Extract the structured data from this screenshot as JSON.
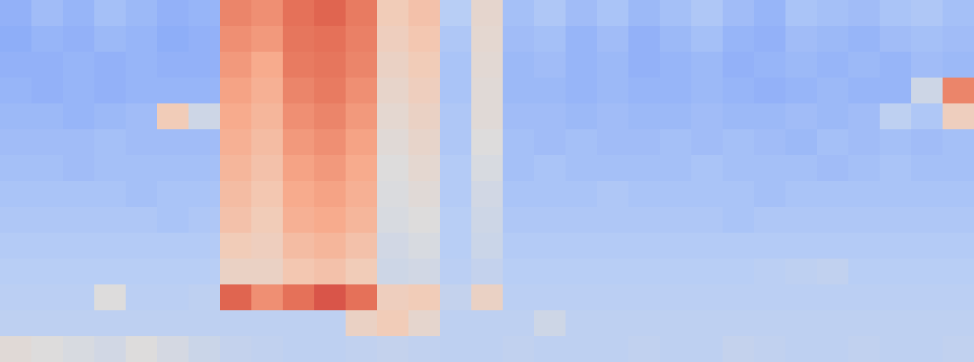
{
  "chart_data": {
    "type": "heatmap",
    "tick_labels": false,
    "color_range": [
      0,
      1
    ],
    "values": [
      [
        0.3,
        0.33,
        0.31,
        0.34,
        0.32,
        0.3,
        0.31,
        0.82,
        0.8,
        0.86,
        0.88,
        0.84,
        0.62,
        0.66,
        0.38,
        0.55,
        0.34,
        0.36,
        0.33,
        0.35,
        0.32,
        0.34,
        0.36,
        0.33,
        0.31,
        0.35,
        0.34,
        0.33,
        0.35,
        0.36,
        0.34
      ],
      [
        0.29,
        0.31,
        0.3,
        0.32,
        0.31,
        0.29,
        0.3,
        0.8,
        0.78,
        0.85,
        0.86,
        0.83,
        0.6,
        0.64,
        0.36,
        0.54,
        0.33,
        0.34,
        0.31,
        0.33,
        0.3,
        0.32,
        0.34,
        0.31,
        0.3,
        0.33,
        0.32,
        0.31,
        0.33,
        0.34,
        0.33
      ],
      [
        0.3,
        0.3,
        0.31,
        0.3,
        0.31,
        0.3,
        0.3,
        0.78,
        0.74,
        0.84,
        0.85,
        0.82,
        0.58,
        0.62,
        0.35,
        0.53,
        0.32,
        0.33,
        0.31,
        0.32,
        0.3,
        0.31,
        0.32,
        0.3,
        0.31,
        0.32,
        0.31,
        0.32,
        0.31,
        0.33,
        0.32
      ],
      [
        0.31,
        0.3,
        0.31,
        0.3,
        0.31,
        0.31,
        0.31,
        0.76,
        0.72,
        0.82,
        0.84,
        0.8,
        0.56,
        0.6,
        0.35,
        0.52,
        0.32,
        0.32,
        0.31,
        0.32,
        0.31,
        0.31,
        0.32,
        0.31,
        0.3,
        0.31,
        0.32,
        0.31,
        0.31,
        0.45,
        0.82
      ],
      [
        0.32,
        0.32,
        0.31,
        0.32,
        0.33,
        0.62,
        0.45,
        0.74,
        0.7,
        0.8,
        0.82,
        0.78,
        0.54,
        0.58,
        0.36,
        0.52,
        0.33,
        0.33,
        0.32,
        0.33,
        0.32,
        0.32,
        0.33,
        0.32,
        0.32,
        0.33,
        0.32,
        0.33,
        0.4,
        0.36,
        0.6
      ],
      [
        0.33,
        0.33,
        0.33,
        0.34,
        0.33,
        0.33,
        0.33,
        0.72,
        0.68,
        0.78,
        0.8,
        0.76,
        0.52,
        0.56,
        0.36,
        0.5,
        0.34,
        0.33,
        0.34,
        0.33,
        0.33,
        0.34,
        0.33,
        0.34,
        0.33,
        0.32,
        0.34,
        0.33,
        0.34,
        0.33,
        0.34
      ],
      [
        0.34,
        0.34,
        0.33,
        0.34,
        0.34,
        0.34,
        0.34,
        0.7,
        0.66,
        0.76,
        0.78,
        0.74,
        0.5,
        0.54,
        0.37,
        0.48,
        0.34,
        0.35,
        0.34,
        0.34,
        0.34,
        0.34,
        0.35,
        0.34,
        0.34,
        0.34,
        0.33,
        0.34,
        0.35,
        0.34,
        0.34
      ],
      [
        0.35,
        0.35,
        0.35,
        0.35,
        0.34,
        0.35,
        0.35,
        0.68,
        0.64,
        0.74,
        0.76,
        0.72,
        0.49,
        0.52,
        0.37,
        0.46,
        0.35,
        0.35,
        0.35,
        0.36,
        0.35,
        0.35,
        0.35,
        0.35,
        0.34,
        0.35,
        0.35,
        0.35,
        0.35,
        0.35,
        0.35
      ],
      [
        0.36,
        0.36,
        0.36,
        0.36,
        0.36,
        0.35,
        0.36,
        0.66,
        0.62,
        0.72,
        0.74,
        0.7,
        0.48,
        0.5,
        0.38,
        0.45,
        0.36,
        0.36,
        0.36,
        0.36,
        0.36,
        0.36,
        0.36,
        0.35,
        0.36,
        0.36,
        0.36,
        0.36,
        0.36,
        0.36,
        0.36
      ],
      [
        0.37,
        0.37,
        0.37,
        0.37,
        0.37,
        0.37,
        0.37,
        0.62,
        0.6,
        0.68,
        0.7,
        0.66,
        0.46,
        0.48,
        0.38,
        0.44,
        0.37,
        0.37,
        0.37,
        0.37,
        0.37,
        0.37,
        0.37,
        0.37,
        0.37,
        0.37,
        0.37,
        0.37,
        0.37,
        0.37,
        0.37
      ],
      [
        0.38,
        0.38,
        0.38,
        0.38,
        0.38,
        0.38,
        0.38,
        0.58,
        0.58,
        0.64,
        0.66,
        0.62,
        0.45,
        0.46,
        0.39,
        0.42,
        0.38,
        0.38,
        0.38,
        0.38,
        0.38,
        0.38,
        0.38,
        0.38,
        0.39,
        0.4,
        0.41,
        0.38,
        0.38,
        0.38,
        0.38
      ],
      [
        0.39,
        0.39,
        0.39,
        0.5,
        0.39,
        0.39,
        0.4,
        0.88,
        0.8,
        0.86,
        0.9,
        0.86,
        0.6,
        0.62,
        0.42,
        0.58,
        0.39,
        0.39,
        0.39,
        0.39,
        0.39,
        0.39,
        0.39,
        0.39,
        0.39,
        0.39,
        0.39,
        0.39,
        0.39,
        0.39,
        0.39
      ],
      [
        0.4,
        0.4,
        0.4,
        0.4,
        0.4,
        0.4,
        0.4,
        0.4,
        0.4,
        0.4,
        0.4,
        0.58,
        0.62,
        0.55,
        0.4,
        0.4,
        0.4,
        0.45,
        0.4,
        0.4,
        0.4,
        0.4,
        0.4,
        0.4,
        0.4,
        0.4,
        0.4,
        0.4,
        0.4,
        0.4,
        0.4
      ],
      [
        0.52,
        0.5,
        0.48,
        0.46,
        0.5,
        0.47,
        0.44,
        0.42,
        0.41,
        0.4,
        0.4,
        0.41,
        0.42,
        0.41,
        0.4,
        0.4,
        0.41,
        0.4,
        0.4,
        0.4,
        0.41,
        0.4,
        0.4,
        0.42,
        0.41,
        0.4,
        0.4,
        0.41,
        0.4,
        0.4,
        0.41
      ]
    ]
  }
}
